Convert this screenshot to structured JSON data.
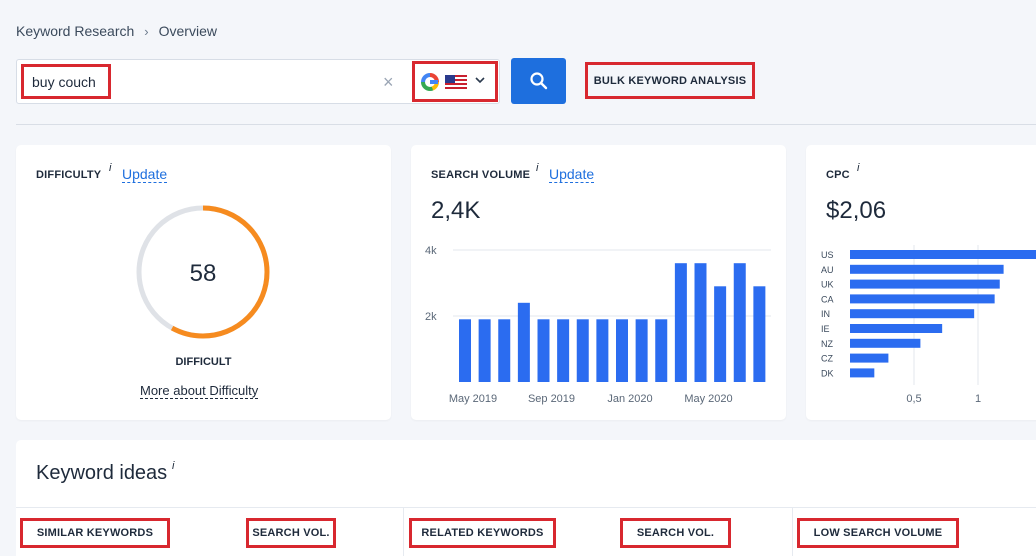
{
  "breadcrumb": {
    "root": "Keyword Research",
    "separator": "›",
    "current": "Overview"
  },
  "search": {
    "value": "buy couch",
    "clear_icon": "×",
    "engine": "google-icon",
    "country": "us-flag-icon",
    "dropdown_icon": "⌄",
    "button_icon": "search-icon"
  },
  "bulk_button": "BULK KEYWORD ANALYSIS",
  "difficulty": {
    "title": "DIFFICULTY",
    "info": "i",
    "update": "Update",
    "value": 58,
    "value_text": "58",
    "label": "DIFFICULT",
    "more_link": "More about Difficulty",
    "color": "#f68b1f"
  },
  "search_volume": {
    "title": "SEARCH VOLUME",
    "info": "i",
    "update": "Update",
    "value": "2,4K",
    "chart_data": {
      "type": "bar",
      "ylim": [
        0,
        4000
      ],
      "yticks": [
        "4k",
        "2k"
      ],
      "xticks": [
        "May 2019",
        "Sep 2019",
        "Jan 2020",
        "May 2020"
      ],
      "values": [
        1900,
        1900,
        1900,
        2400,
        1900,
        1900,
        1900,
        1900,
        1900,
        1900,
        1900,
        3600,
        3600,
        2900,
        3600,
        2900
      ],
      "color": "#2b6cf0"
    }
  },
  "cpc": {
    "title": "CPC",
    "info": "i",
    "value": "$2,06",
    "chart_data": {
      "type": "bar",
      "orientation": "horizontal",
      "categories": [
        "US",
        "AU",
        "UK",
        "CA",
        "IN",
        "IE",
        "NZ",
        "CZ",
        "DK"
      ],
      "values": [
        1.7,
        1.2,
        1.17,
        1.13,
        0.97,
        0.72,
        0.55,
        0.3,
        0.19
      ],
      "xticks": [
        "0,5",
        "1",
        "1"
      ],
      "color": "#2b6cf0"
    }
  },
  "keyword_ideas": {
    "title": "Keyword ideas",
    "info": "i",
    "tabs": {
      "similar": "SIMILAR KEYWORDS",
      "similar_vol": "SEARCH VOL.",
      "related": "RELATED KEYWORDS",
      "related_vol": "SEARCH VOL.",
      "low": "LOW SEARCH VOLUME"
    }
  }
}
